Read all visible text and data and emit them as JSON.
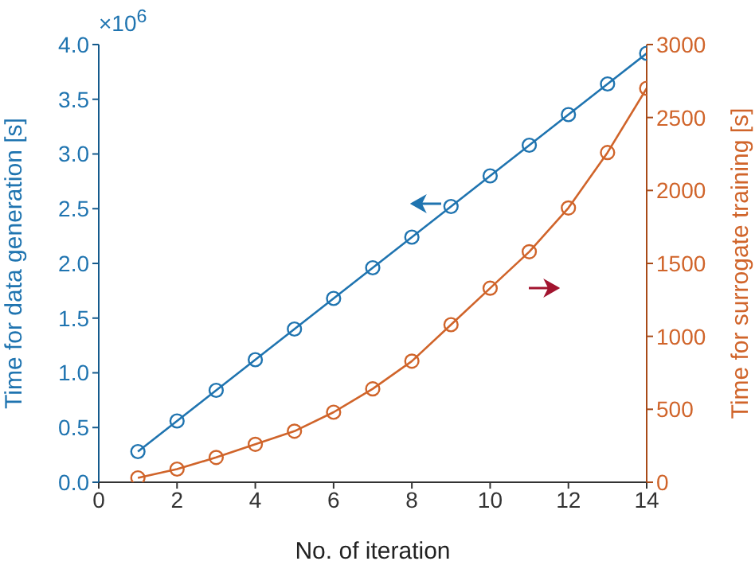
{
  "chart_data": {
    "type": "line",
    "xlabel": "No. of iteration",
    "ylabel": "Time for data generation [s]",
    "y2label": "Time for surrogate training [s]",
    "x": [
      1,
      2,
      3,
      4,
      5,
      6,
      7,
      8,
      9,
      10,
      11,
      12,
      13,
      14
    ],
    "series": [
      {
        "color": "#1f74b0",
        "values": [
          0.28,
          0.56,
          0.84,
          1.12,
          1.4,
          1.68,
          1.96,
          2.24,
          2.52,
          2.8,
          3.08,
          3.36,
          3.64,
          3.92
        ]
      },
      {
        "color": "#d0642a",
        "axis": "y2",
        "values": [
          30,
          90,
          170,
          260,
          350,
          480,
          640,
          830,
          1080,
          1330,
          1580,
          1880,
          2260,
          2700
        ]
      }
    ],
    "xlim": [
      0,
      14
    ],
    "xticks": [
      0,
      2,
      4,
      6,
      8,
      10,
      12,
      14
    ],
    "ylim": [
      0,
      4
    ],
    "yticks": [
      {
        "value": 0,
        "label": "0.0"
      },
      {
        "value": 0.5,
        "label": "0.5"
      },
      {
        "value": 1,
        "label": "1.0"
      },
      {
        "value": 1.5,
        "label": "1.5"
      },
      {
        "value": 2,
        "label": "2.0"
      },
      {
        "value": 2.5,
        "label": "2.5"
      },
      {
        "value": 3,
        "label": "3.0"
      },
      {
        "value": 3.5,
        "label": "3.5"
      },
      {
        "value": 4,
        "label": "4.0"
      }
    ],
    "y2lim": [
      0,
      3000
    ],
    "y2ticks": [
      0,
      500,
      1000,
      1500,
      2000,
      2500,
      3000
    ],
    "annotations": [
      "×10$^{6}$"
    ],
    "marker": "circle",
    "line_style": "solid"
  }
}
